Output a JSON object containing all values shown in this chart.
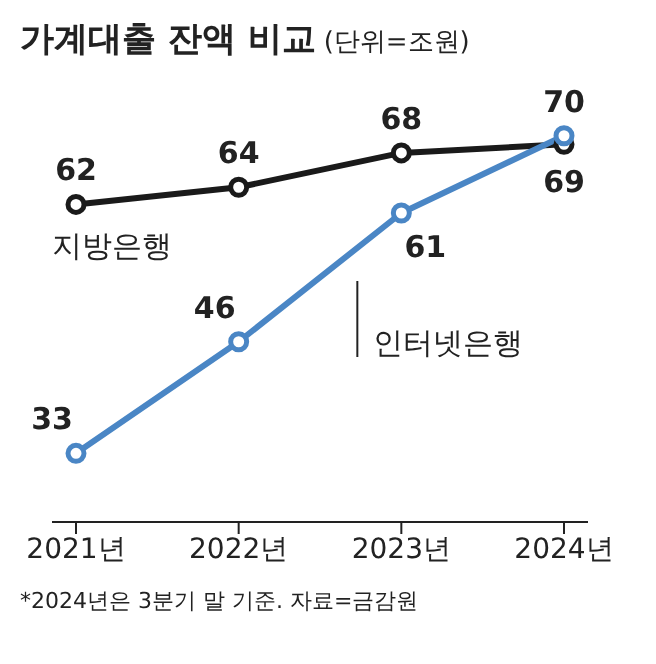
{
  "chart_data": {
    "type": "line",
    "title": "가계대출 잔액 비교",
    "subtitle": "(단위=조원)",
    "categories": [
      "2021년",
      "2022년",
      "2023년",
      "2024년"
    ],
    "series": [
      {
        "name": "지방은행",
        "color": "#1a1a1a",
        "values": [
          62,
          64,
          68,
          69
        ]
      },
      {
        "name": "인터넷은행",
        "color": "#4a86c5",
        "values": [
          33,
          46,
          61,
          70
        ]
      }
    ],
    "data_labels": true,
    "marker": "circle",
    "line_style": "solid",
    "grid": false,
    "legend": false,
    "tick_labels": "x",
    "annotations": [
      "*2024년은 3분기 말 기준. 자료=금감원"
    ]
  }
}
